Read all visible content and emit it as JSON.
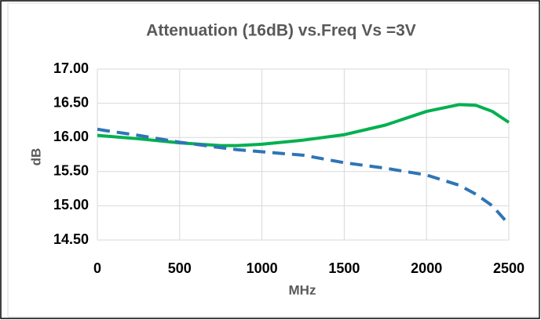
{
  "chart_data": {
    "type": "line",
    "title": "Attenuation (16dB) vs.Freq Vs =3V",
    "x_label": "MHz",
    "y_label": "dB",
    "x": [
      0,
      50,
      250,
      500,
      750,
      850,
      1000,
      1250,
      1500,
      1750,
      2000,
      2200,
      2300,
      2400,
      2500
    ],
    "series": [
      {
        "color": "#00b050",
        "dashed": false,
        "values": [
          16.03,
          16.02,
          15.98,
          15.92,
          15.88,
          15.88,
          15.9,
          15.96,
          16.04,
          16.18,
          16.38,
          16.48,
          16.47,
          16.38,
          16.22
        ]
      },
      {
        "color": "#2e75b6",
        "dashed": true,
        "values": [
          16.12,
          16.1,
          16.03,
          15.93,
          15.85,
          15.82,
          15.79,
          15.74,
          15.63,
          15.55,
          15.45,
          15.3,
          15.17,
          15.0,
          14.73
        ]
      }
    ],
    "xlim": [
      0,
      2500
    ],
    "xticks": [
      0,
      500,
      1000,
      1500,
      2000,
      2500
    ],
    "ylim": [
      14.5,
      17
    ],
    "yticks": [
      {
        "value": 14.5,
        "label": "14.50"
      },
      {
        "value": 15,
        "label": "15.00"
      },
      {
        "value": 15.5,
        "label": "15.50"
      },
      {
        "value": 16,
        "label": "16.00"
      },
      {
        "value": 16.5,
        "label": "16.50"
      },
      {
        "value": 17,
        "label": "17.00"
      }
    ],
    "grid": true
  }
}
